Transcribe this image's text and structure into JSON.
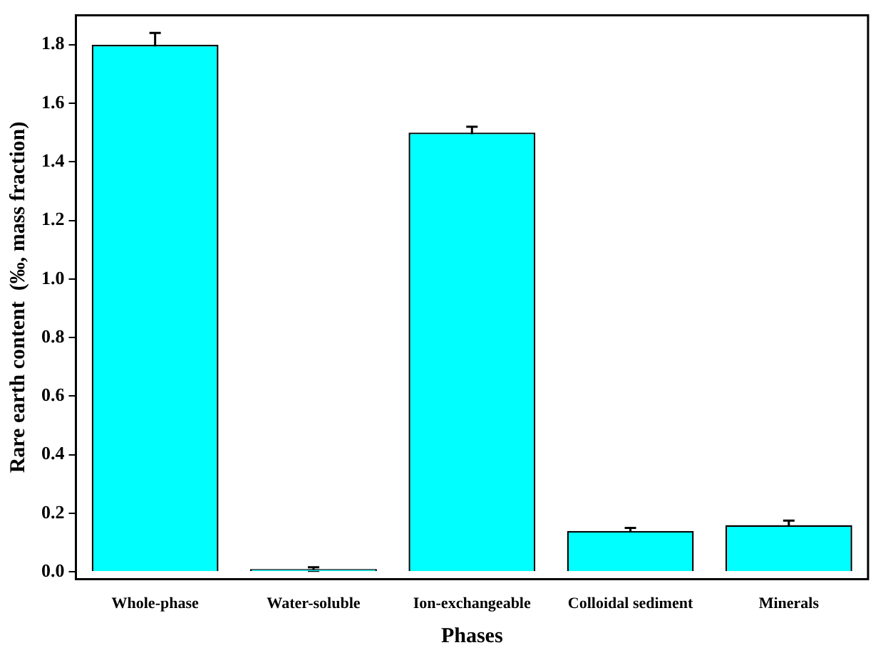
{
  "chart_data": {
    "type": "bar",
    "xlabel": "Phases",
    "ylabel": "Rare earth content  (‰, mass fraction)",
    "categories": [
      "Whole-phase",
      "Water-soluble",
      "Ion-exchangeable",
      "Colloidal sediment",
      "Minerals"
    ],
    "values": [
      1.8,
      0.01,
      1.5,
      0.14,
      0.16
    ],
    "errors": [
      0.04,
      0.006,
      0.02,
      0.01,
      0.015
    ],
    "color": "#00ffff",
    "ylim": [
      -0.025,
      1.9
    ],
    "yticks": [
      {
        "value": 0,
        "label": "0.0"
      },
      {
        "value": 0.2,
        "label": "0.2"
      },
      {
        "value": 0.4,
        "label": "0.4"
      },
      {
        "value": 0.6,
        "label": "0.6"
      },
      {
        "value": 0.8,
        "label": "0.8"
      },
      {
        "value": 1.0,
        "label": "1.0"
      },
      {
        "value": 1.2,
        "label": "1.2"
      },
      {
        "value": 1.4,
        "label": "1.4"
      },
      {
        "value": 1.6,
        "label": "1.6"
      },
      {
        "value": 1.8,
        "label": "1.8"
      }
    ]
  }
}
